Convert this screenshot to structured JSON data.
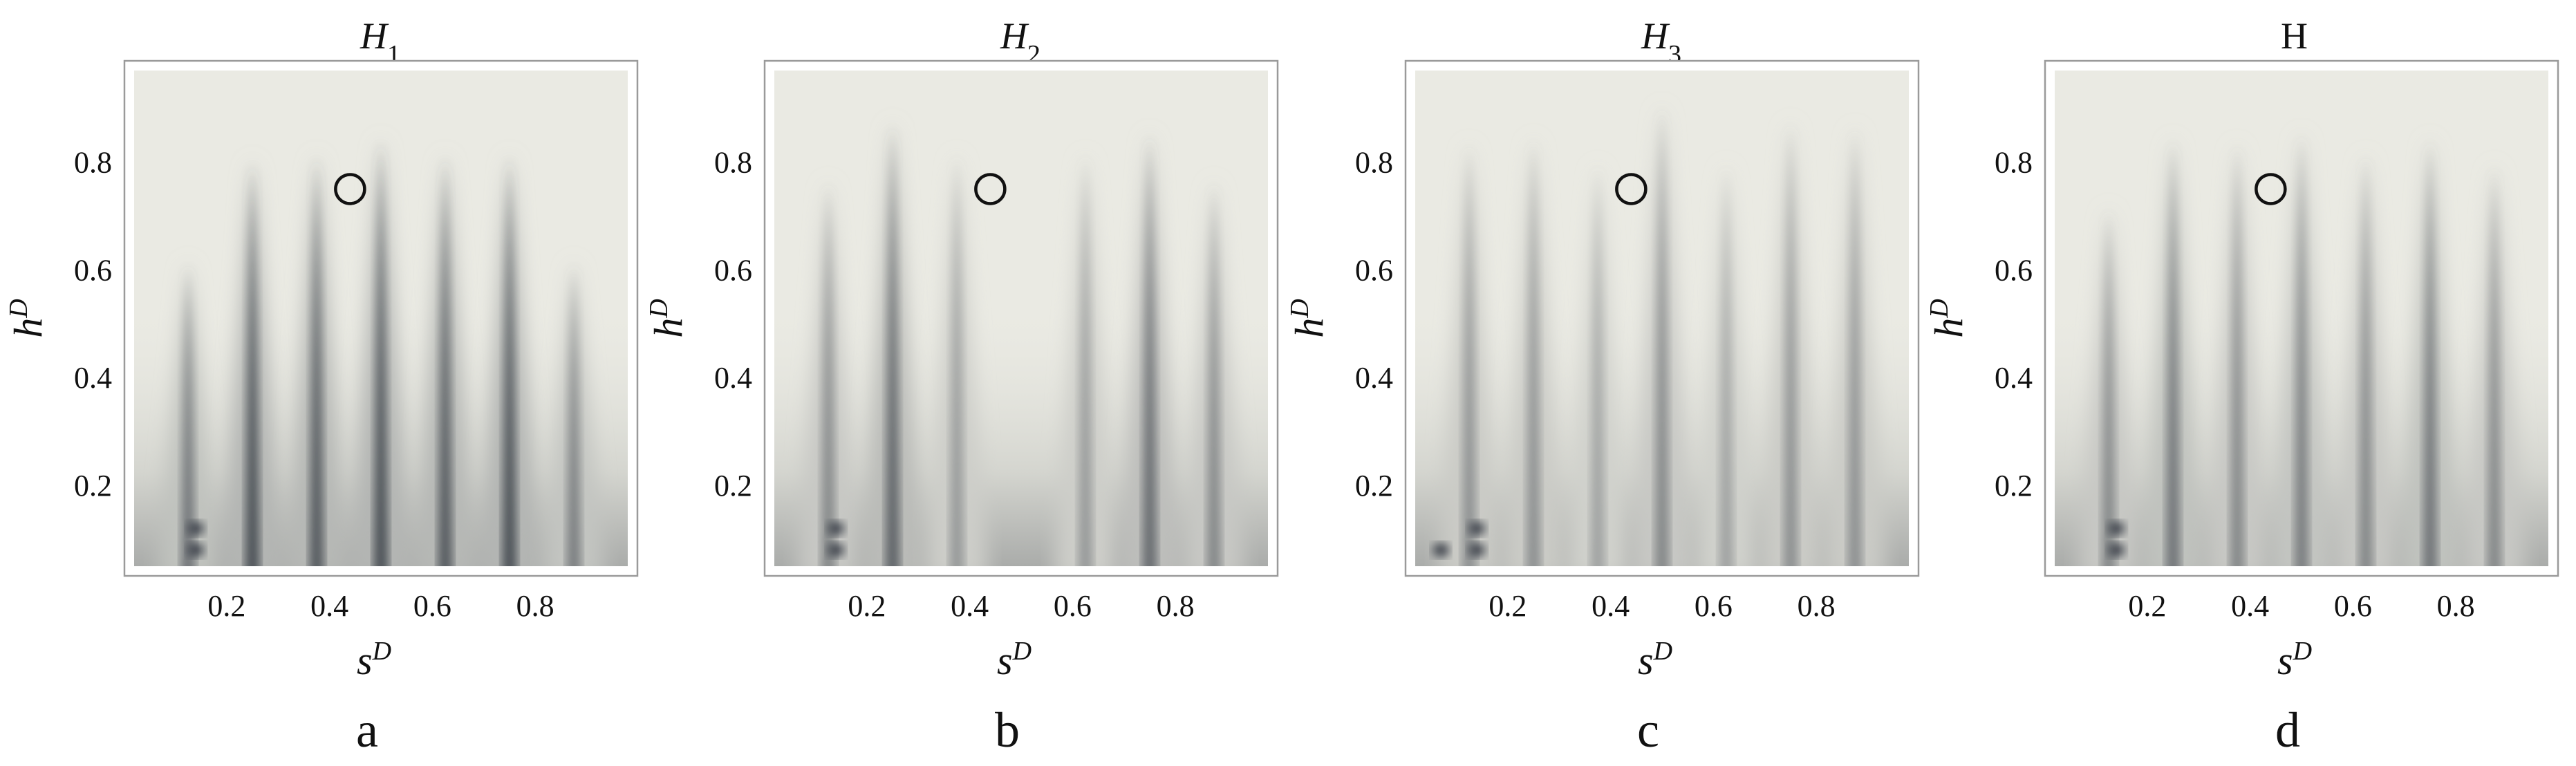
{
  "chart_data": [
    {
      "type": "heatmap",
      "panel_label": "a",
      "title": "H",
      "title_subscript": "1",
      "xlabel": "s",
      "xlabel_sup": "D",
      "ylabel": "h",
      "ylabel_sup": "D",
      "xlim": [
        0.02,
        0.98
      ],
      "ylim": [
        0.05,
        0.97
      ],
      "xticks": [
        "0.2",
        "0.4",
        "0.6",
        "0.8"
      ],
      "yticks": [
        "0.2",
        "0.4",
        "0.6",
        "0.8"
      ],
      "colormap": [
        "#eaeae3",
        "#323840"
      ],
      "marker": {
        "shape": "circle",
        "x": 0.44,
        "y": 0.75
      },
      "ridges": [
        {
          "x": 0.125,
          "top": 0.62,
          "intensity": 0.65
        },
        {
          "x": 0.25,
          "top": 0.81,
          "intensity": 0.85
        },
        {
          "x": 0.375,
          "top": 0.82,
          "intensity": 0.8
        },
        {
          "x": 0.5,
          "top": 0.85,
          "intensity": 0.85
        },
        {
          "x": 0.625,
          "top": 0.82,
          "intensity": 0.8
        },
        {
          "x": 0.75,
          "top": 0.82,
          "intensity": 0.85
        },
        {
          "x": 0.875,
          "top": 0.62,
          "intensity": 0.6
        }
      ],
      "dark_spots": [
        {
          "x": 0.14,
          "y": 0.12
        },
        {
          "x": 0.14,
          "y": 0.08
        }
      ]
    },
    {
      "type": "heatmap",
      "panel_label": "b",
      "title": "H",
      "title_subscript": "2",
      "xlabel": "s",
      "xlabel_sup": "D",
      "ylabel": "h",
      "ylabel_sup": "D",
      "xlim": [
        0.02,
        0.98
      ],
      "ylim": [
        0.05,
        0.97
      ],
      "xticks": [
        "0.2",
        "0.4",
        "0.6",
        "0.8"
      ],
      "yticks": [
        "0.2",
        "0.4",
        "0.6",
        "0.8"
      ],
      "colormap": [
        "#eaeae3",
        "#323840"
      ],
      "marker": {
        "shape": "circle",
        "x": 0.44,
        "y": 0.75
      },
      "ridges": [
        {
          "x": 0.125,
          "top": 0.77,
          "intensity": 0.55
        },
        {
          "x": 0.25,
          "top": 0.88,
          "intensity": 0.75
        },
        {
          "x": 0.375,
          "top": 0.82,
          "intensity": 0.45
        },
        {
          "x": 0.625,
          "top": 0.82,
          "intensity": 0.45
        },
        {
          "x": 0.75,
          "top": 0.86,
          "intensity": 0.7
        },
        {
          "x": 0.875,
          "top": 0.77,
          "intensity": 0.55
        }
      ],
      "dark_spots": [
        {
          "x": 0.14,
          "y": 0.12
        },
        {
          "x": 0.14,
          "y": 0.08
        }
      ]
    },
    {
      "type": "heatmap",
      "panel_label": "c",
      "title": "H",
      "title_subscript": "3",
      "xlabel": "s",
      "xlabel_sup": "D",
      "ylabel": "h",
      "ylabel_sup": "D",
      "xlim": [
        0.02,
        0.98
      ],
      "ylim": [
        0.05,
        0.97
      ],
      "xticks": [
        "0.2",
        "0.4",
        "0.6",
        "0.8"
      ],
      "yticks": [
        "0.2",
        "0.4",
        "0.6",
        "0.8"
      ],
      "colormap": [
        "#eaeae3",
        "#323840"
      ],
      "marker": {
        "shape": "circle",
        "x": 0.44,
        "y": 0.75
      },
      "ridges": [
        {
          "x": 0.125,
          "top": 0.84,
          "intensity": 0.5
        },
        {
          "x": 0.25,
          "top": 0.85,
          "intensity": 0.5
        },
        {
          "x": 0.375,
          "top": 0.8,
          "intensity": 0.4
        },
        {
          "x": 0.5,
          "top": 0.91,
          "intensity": 0.55
        },
        {
          "x": 0.625,
          "top": 0.8,
          "intensity": 0.4
        },
        {
          "x": 0.75,
          "top": 0.88,
          "intensity": 0.5
        },
        {
          "x": 0.875,
          "top": 0.87,
          "intensity": 0.5
        }
      ],
      "dark_spots": [
        {
          "x": 0.07,
          "y": 0.08
        },
        {
          "x": 0.14,
          "y": 0.12
        },
        {
          "x": 0.14,
          "y": 0.08
        }
      ]
    },
    {
      "type": "heatmap",
      "panel_label": "d",
      "title": "H",
      "title_subscript": "",
      "xlabel": "s",
      "xlabel_sup": "D",
      "ylabel": "h",
      "ylabel_sup": "D",
      "xlim": [
        0.02,
        0.98
      ],
      "ylim": [
        0.05,
        0.97
      ],
      "xticks": [
        "0.2",
        "0.4",
        "0.6",
        "0.8"
      ],
      "yticks": [
        "0.2",
        "0.4",
        "0.6",
        "0.8"
      ],
      "colormap": [
        "#eaeae3",
        "#323840"
      ],
      "marker": {
        "shape": "circle",
        "x": 0.44,
        "y": 0.75
      },
      "ridges": [
        {
          "x": 0.125,
          "top": 0.72,
          "intensity": 0.55
        },
        {
          "x": 0.25,
          "top": 0.85,
          "intensity": 0.65
        },
        {
          "x": 0.375,
          "top": 0.84,
          "intensity": 0.55
        },
        {
          "x": 0.5,
          "top": 0.86,
          "intensity": 0.6
        },
        {
          "x": 0.625,
          "top": 0.82,
          "intensity": 0.55
        },
        {
          "x": 0.75,
          "top": 0.85,
          "intensity": 0.65
        },
        {
          "x": 0.875,
          "top": 0.8,
          "intensity": 0.55
        }
      ],
      "dark_spots": [
        {
          "x": 0.14,
          "y": 0.12
        },
        {
          "x": 0.14,
          "y": 0.08
        }
      ]
    }
  ]
}
